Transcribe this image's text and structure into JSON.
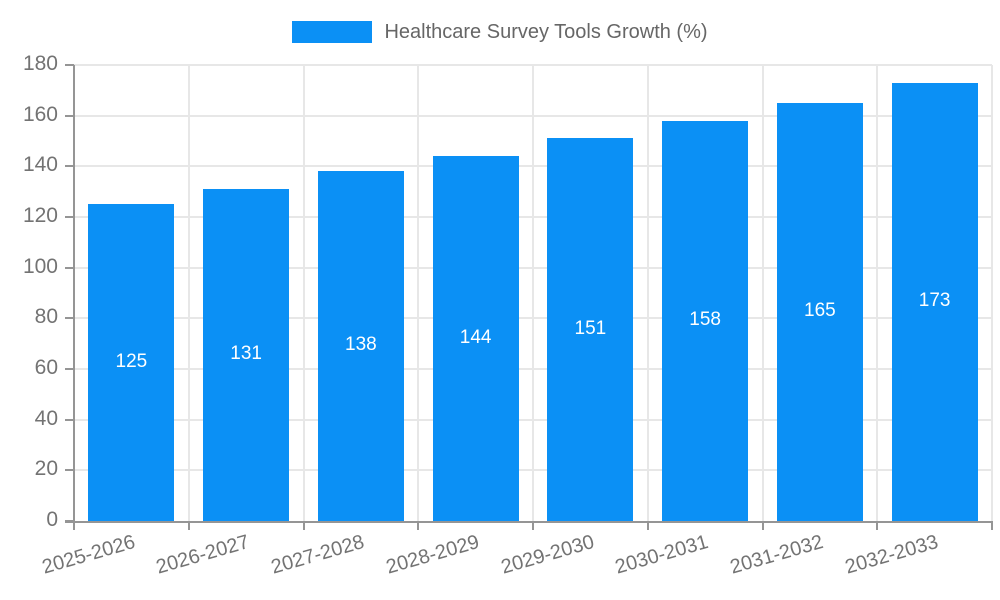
{
  "legend": {
    "label": "Healthcare Survey Tools Growth (%)"
  },
  "chart_data": {
    "type": "bar",
    "title": "Healthcare Survey Tools Growth (%)",
    "categories": [
      "2025-2026",
      "2026-2027",
      "2027-2028",
      "2028-2029",
      "2029-2030",
      "2030-2031",
      "2031-2032",
      "2032-2033"
    ],
    "values": [
      125,
      131,
      138,
      144,
      151,
      158,
      165,
      173
    ],
    "xlabel": "",
    "ylabel": "",
    "ylim": [
      0,
      180
    ],
    "yticks": [
      0,
      20,
      40,
      60,
      80,
      100,
      120,
      140,
      160,
      180
    ],
    "grid": true,
    "legend_position": "top",
    "bar_labels_inside": true,
    "x_label_rotation_deg": -16,
    "colors": {
      "bar": "#0b90f5",
      "bar_label": "#ffffff",
      "grid": "#e7e7e7",
      "axis": "#959595",
      "tick_text": "#737373",
      "legend_text": "#666666"
    }
  }
}
